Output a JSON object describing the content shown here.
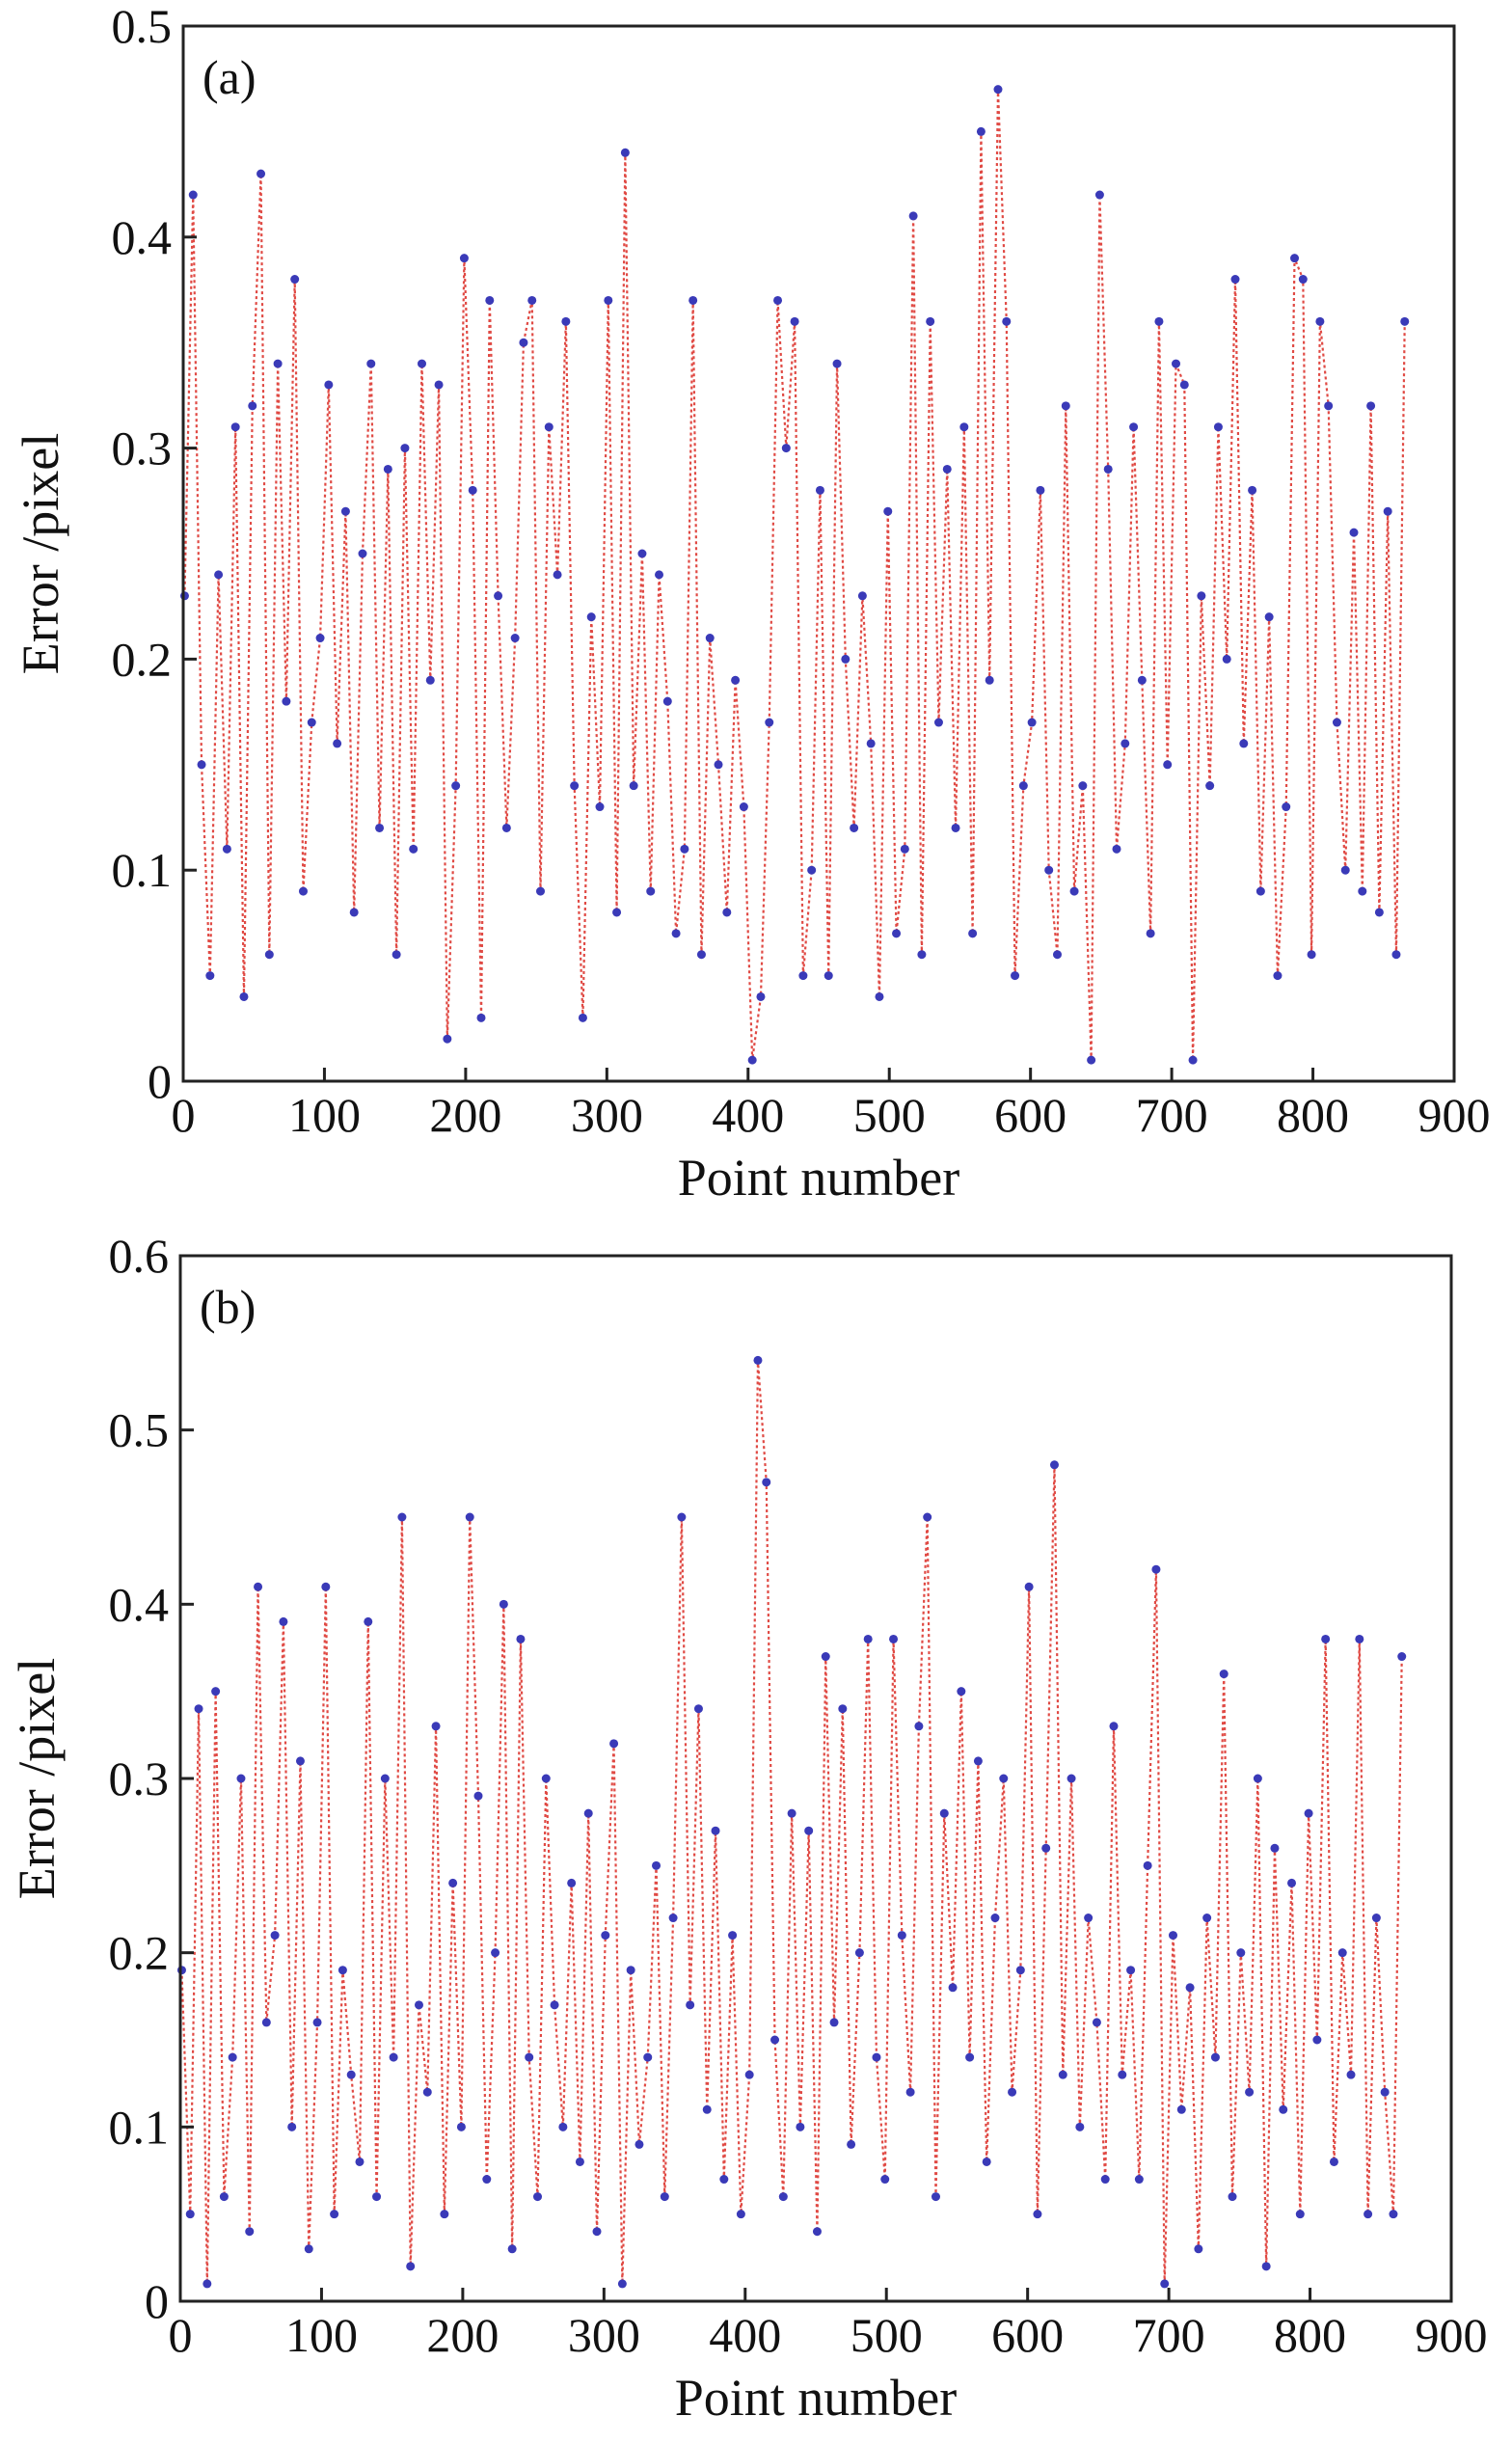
{
  "chart_data": [
    {
      "type": "line",
      "panel_label": "(a)",
      "xlabel": "Point number",
      "ylabel": "Error /pixel",
      "x": [
        1,
        7,
        13,
        19,
        25,
        31,
        37,
        43,
        49,
        55,
        61,
        67,
        73,
        79,
        85,
        91,
        97,
        103,
        109,
        115,
        121,
        127,
        133,
        139,
        145,
        151,
        157,
        163,
        169,
        175,
        181,
        187,
        193,
        199,
        205,
        211,
        217,
        223,
        229,
        235,
        241,
        247,
        253,
        259,
        265,
        271,
        277,
        283,
        289,
        295,
        301,
        307,
        313,
        319,
        325,
        331,
        337,
        343,
        349,
        355,
        361,
        367,
        373,
        379,
        385,
        391,
        397,
        403,
        409,
        415,
        421,
        427,
        433,
        439,
        445,
        451,
        457,
        463,
        469,
        475,
        481,
        487,
        493,
        499,
        505,
        511,
        517,
        523,
        529,
        535,
        541,
        547,
        553,
        559,
        565,
        571,
        577,
        583,
        589,
        595,
        601,
        607,
        613,
        619,
        625,
        631,
        637,
        643,
        649,
        655,
        661,
        667,
        673,
        679,
        685,
        691,
        697,
        703,
        709,
        715,
        721,
        727,
        733,
        739,
        745,
        751,
        757,
        763,
        769,
        775,
        781,
        787,
        793,
        799,
        805,
        811,
        817,
        823,
        829,
        835,
        841,
        847,
        853,
        859,
        865
      ],
      "series": [
        {
          "color": "#e04a44",
          "marker_color": "#3a3ab8",
          "values": [
            0.23,
            0.42,
            0.15,
            0.05,
            0.24,
            0.11,
            0.31,
            0.04,
            0.32,
            0.43,
            0.06,
            0.34,
            0.18,
            0.38,
            0.09,
            0.17,
            0.21,
            0.33,
            0.16,
            0.27,
            0.08,
            0.25,
            0.34,
            0.12,
            0.29,
            0.06,
            0.3,
            0.11,
            0.34,
            0.19,
            0.33,
            0.02,
            0.14,
            0.39,
            0.28,
            0.03,
            0.37,
            0.23,
            0.12,
            0.21,
            0.35,
            0.37,
            0.09,
            0.31,
            0.24,
            0.36,
            0.14,
            0.03,
            0.22,
            0.13,
            0.37,
            0.08,
            0.44,
            0.14,
            0.25,
            0.09,
            0.24,
            0.18,
            0.07,
            0.11,
            0.37,
            0.06,
            0.21,
            0.15,
            0.08,
            0.19,
            0.13,
            0.01,
            0.04,
            0.17,
            0.37,
            0.3,
            0.36,
            0.05,
            0.1,
            0.28,
            0.05,
            0.34,
            0.2,
            0.12,
            0.23,
            0.16,
            0.04,
            0.27,
            0.07,
            0.11,
            0.41,
            0.06,
            0.36,
            0.17,
            0.29,
            0.12,
            0.31,
            0.07,
            0.45,
            0.19,
            0.47,
            0.36,
            0.05,
            0.14,
            0.17,
            0.28,
            0.1,
            0.06,
            0.32,
            0.09,
            0.14,
            0.01,
            0.42,
            0.29,
            0.11,
            0.16,
            0.31,
            0.19,
            0.07,
            0.36,
            0.15,
            0.34,
            0.33,
            0.01,
            0.23,
            0.14,
            0.31,
            0.2,
            0.38,
            0.16,
            0.28,
            0.09,
            0.22,
            0.05,
            0.13,
            0.39,
            0.38,
            0.06,
            0.36,
            0.32,
            0.17,
            0.1,
            0.26,
            0.09,
            0.32,
            0.08,
            0.27,
            0.06,
            0.36
          ]
        }
      ],
      "xlim": [
        0,
        900
      ],
      "xticks": [
        0,
        100,
        200,
        300,
        400,
        500,
        600,
        700,
        800,
        900
      ],
      "ylim": [
        0,
        0.5
      ],
      "yticks": [
        0,
        0.1,
        0.2,
        0.3,
        0.4,
        0.5
      ]
    },
    {
      "type": "line",
      "panel_label": "(b)",
      "xlabel": "Point number",
      "ylabel": "Error /pixel",
      "x": [
        1,
        7,
        13,
        19,
        25,
        31,
        37,
        43,
        49,
        55,
        61,
        67,
        73,
        79,
        85,
        91,
        97,
        103,
        109,
        115,
        121,
        127,
        133,
        139,
        145,
        151,
        157,
        163,
        169,
        175,
        181,
        187,
        193,
        199,
        205,
        211,
        217,
        223,
        229,
        235,
        241,
        247,
        253,
        259,
        265,
        271,
        277,
        283,
        289,
        295,
        301,
        307,
        313,
        319,
        325,
        331,
        337,
        343,
        349,
        355,
        361,
        367,
        373,
        379,
        385,
        391,
        397,
        403,
        409,
        415,
        421,
        427,
        433,
        439,
        445,
        451,
        457,
        463,
        469,
        475,
        481,
        487,
        493,
        499,
        505,
        511,
        517,
        523,
        529,
        535,
        541,
        547,
        553,
        559,
        565,
        571,
        577,
        583,
        589,
        595,
        601,
        607,
        613,
        619,
        625,
        631,
        637,
        643,
        649,
        655,
        661,
        667,
        673,
        679,
        685,
        691,
        697,
        703,
        709,
        715,
        721,
        727,
        733,
        739,
        745,
        751,
        757,
        763,
        769,
        775,
        781,
        787,
        793,
        799,
        805,
        811,
        817,
        823,
        829,
        835,
        841,
        847,
        853,
        859,
        865
      ],
      "series": [
        {
          "color": "#e04a44",
          "marker_color": "#3a3ab8",
          "values": [
            0.19,
            0.05,
            0.34,
            0.01,
            0.35,
            0.06,
            0.14,
            0.3,
            0.04,
            0.41,
            0.16,
            0.21,
            0.39,
            0.1,
            0.31,
            0.03,
            0.16,
            0.41,
            0.05,
            0.19,
            0.13,
            0.08,
            0.39,
            0.06,
            0.3,
            0.14,
            0.45,
            0.02,
            0.17,
            0.12,
            0.33,
            0.05,
            0.24,
            0.1,
            0.45,
            0.29,
            0.07,
            0.2,
            0.4,
            0.03,
            0.38,
            0.14,
            0.06,
            0.3,
            0.17,
            0.1,
            0.24,
            0.08,
            0.28,
            0.04,
            0.21,
            0.32,
            0.01,
            0.19,
            0.09,
            0.14,
            0.25,
            0.06,
            0.22,
            0.45,
            0.17,
            0.34,
            0.11,
            0.27,
            0.07,
            0.21,
            0.05,
            0.13,
            0.54,
            0.47,
            0.15,
            0.06,
            0.28,
            0.1,
            0.27,
            0.04,
            0.37,
            0.16,
            0.34,
            0.09,
            0.2,
            0.38,
            0.14,
            0.07,
            0.38,
            0.21,
            0.12,
            0.33,
            0.45,
            0.06,
            0.28,
            0.18,
            0.35,
            0.14,
            0.31,
            0.08,
            0.22,
            0.3,
            0.12,
            0.19,
            0.41,
            0.05,
            0.26,
            0.48,
            0.13,
            0.3,
            0.1,
            0.22,
            0.16,
            0.07,
            0.33,
            0.13,
            0.19,
            0.07,
            0.25,
            0.42,
            0.01,
            0.21,
            0.11,
            0.18,
            0.03,
            0.22,
            0.14,
            0.36,
            0.06,
            0.2,
            0.12,
            0.3,
            0.02,
            0.26,
            0.11,
            0.24,
            0.05,
            0.28,
            0.15,
            0.38,
            0.08,
            0.2,
            0.13,
            0.38,
            0.05,
            0.22,
            0.12,
            0.05,
            0.37
          ]
        }
      ],
      "xlim": [
        0,
        900
      ],
      "xticks": [
        0,
        100,
        200,
        300,
        400,
        500,
        600,
        700,
        800,
        900
      ],
      "ylim": [
        0,
        0.6
      ],
      "yticks": [
        0,
        0.1,
        0.2,
        0.3,
        0.4,
        0.5,
        0.6
      ]
    }
  ]
}
